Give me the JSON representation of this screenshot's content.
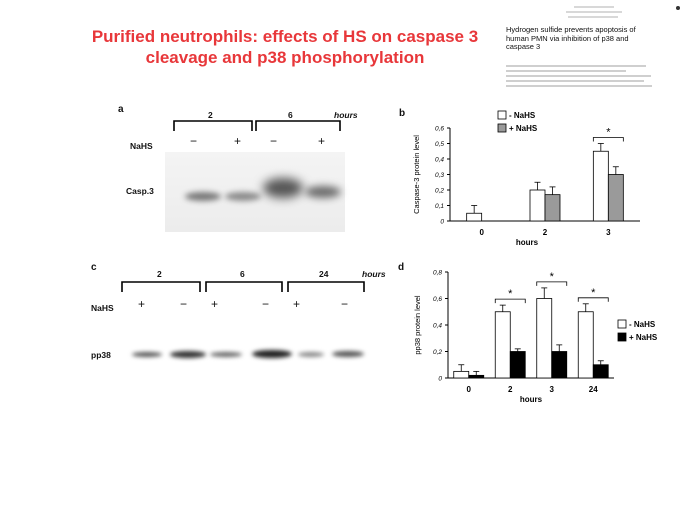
{
  "slide": {
    "title_line1": "Purified neutrophils: effects of HS on caspase 3",
    "title_line2": "cleavage and p38 phosphorylation"
  },
  "reference": {
    "title": "Hydrogen sulfide prevents apoptosis of human PMN via inhibition of p38 and caspase 3"
  },
  "blot_a": {
    "letter": "a",
    "time_labels": [
      "2",
      "6"
    ],
    "hours_label": "hours",
    "treatment_label": "NaHS",
    "signs": [
      "−",
      "+",
      "−",
      "+"
    ],
    "band_label": "Casp.3"
  },
  "blot_c": {
    "letter": "c",
    "time_labels": [
      "2",
      "6",
      "24"
    ],
    "hours_label": "hours",
    "treatment_label": "NaHS",
    "signs": [
      "+",
      "−",
      "+",
      "−",
      "+",
      "−"
    ],
    "band_label": "pp38"
  },
  "chart_data": [
    {
      "panel": "b",
      "type": "bar",
      "categories": [
        "0",
        "2",
        "3"
      ],
      "series": [
        {
          "name": "- NaHS",
          "values": [
            0.05,
            0.2,
            0.45
          ],
          "errors": [
            0.05,
            0.05,
            0.05
          ],
          "color": "#ffffff"
        },
        {
          "name": "+ NaHS",
          "values": [
            null,
            0.17,
            0.3
          ],
          "errors": [
            null,
            0.05,
            0.05
          ],
          "color": "#9a9a9a"
        }
      ],
      "xlabel": "hours",
      "ylabel": "Caspase-3 protein level",
      "ylim": [
        0,
        0.6
      ],
      "yticks": [
        "0",
        "0,1",
        "0,2",
        "0,3",
        "0,4",
        "0,5",
        "0,6"
      ],
      "significance": [
        {
          "category": "3",
          "mark": "*"
        }
      ],
      "legend_position": "top-right"
    },
    {
      "panel": "d",
      "type": "bar",
      "categories": [
        "0",
        "2",
        "3",
        "24"
      ],
      "series": [
        {
          "name": "- NaHS",
          "values": [
            0.05,
            0.5,
            0.6,
            0.5
          ],
          "errors": [
            0.05,
            0.05,
            0.08,
            0.06
          ],
          "color": "#ffffff"
        },
        {
          "name": "+ NaHS",
          "values": [
            0.02,
            0.2,
            0.2,
            0.1
          ],
          "errors": [
            0.03,
            0.02,
            0.05,
            0.03
          ],
          "color": "#000000"
        }
      ],
      "xlabel": "hours",
      "ylabel": "pp38 protein level",
      "ylim": [
        0,
        0.8
      ],
      "yticks": [
        "0",
        "0,2",
        "0,4",
        "0,6",
        "0,8"
      ],
      "significance": [
        {
          "category": "2",
          "mark": "*"
        },
        {
          "category": "3",
          "mark": "*"
        },
        {
          "category": "24",
          "mark": "*"
        }
      ],
      "legend_position": "right"
    }
  ]
}
